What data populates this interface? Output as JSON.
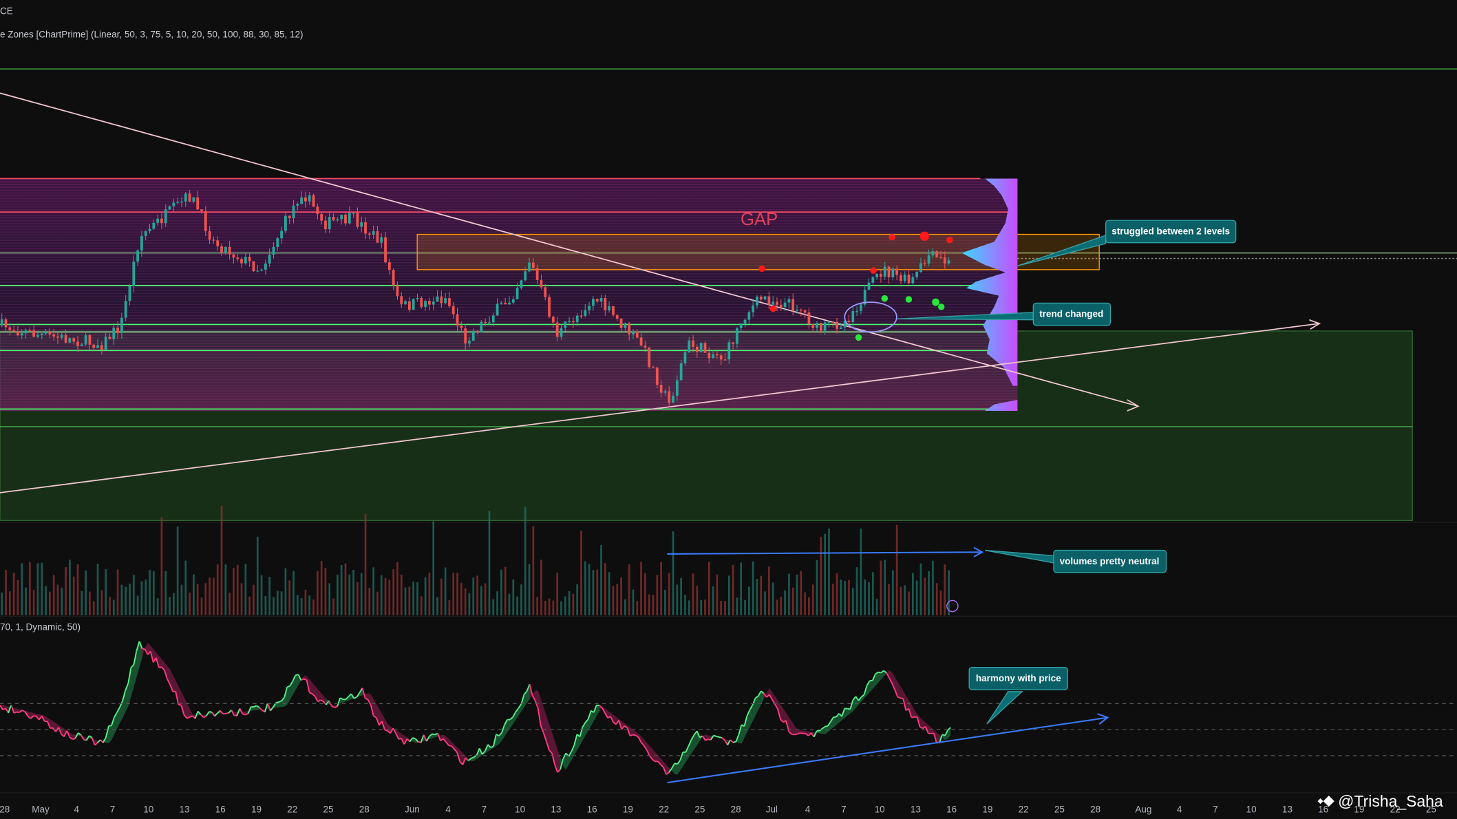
{
  "header": {
    "symbol": "CE",
    "indicator": "e Zones [ChartPrime] (Linear, 50, 3, 75, 5, 10, 20, 50, 100, 88, 30, 85, 12)"
  },
  "oscillator": {
    "params": "70, 1, Dynamic, 50)"
  },
  "annotations": {
    "gap": "GAP",
    "levels": "struggled between 2 levels",
    "trend": "trend changed",
    "volumes": "volumes pretty neutral",
    "harmony": "harmony with price"
  },
  "x_axis": {
    "labels": [
      "28",
      "May",
      "4",
      "7",
      "10",
      "13",
      "16",
      "19",
      "22",
      "25",
      "28",
      "Jun",
      "4",
      "7",
      "10",
      "13",
      "16",
      "19",
      "22",
      "25",
      "28",
      "Jul",
      "4",
      "7",
      "10",
      "13",
      "16",
      "19",
      "22",
      "25",
      "28",
      "Aug",
      "4",
      "7",
      "10",
      "13",
      "16",
      "19",
      "22",
      "25"
    ]
  },
  "watermark": "@Trisha_Saha"
}
